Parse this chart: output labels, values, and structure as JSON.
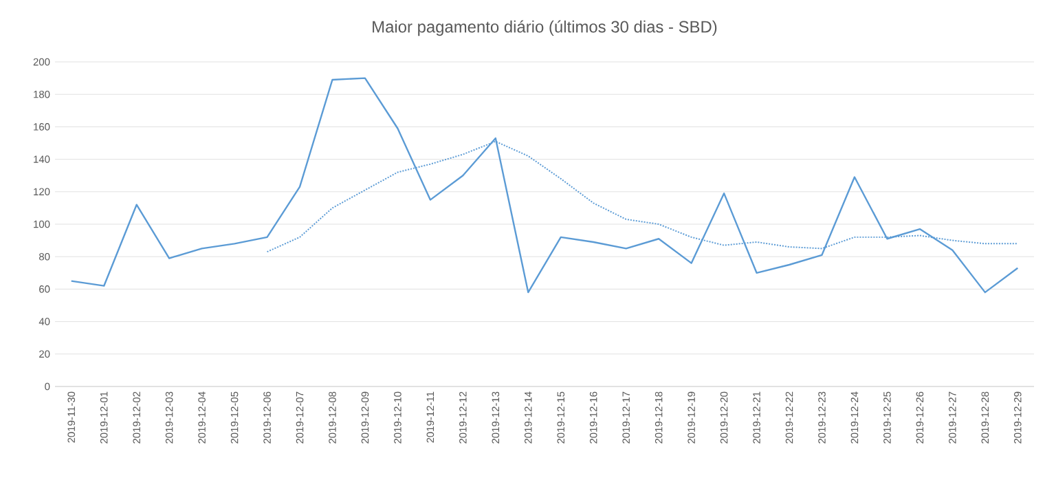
{
  "chart_data": {
    "type": "line",
    "title": "Maior pagamento diário (últimos 30 dias  - SBD)",
    "categories": [
      "2019-11-30",
      "2019-12-01",
      "2019-12-02",
      "2019-12-03",
      "2019-12-04",
      "2019-12-05",
      "2019-12-06",
      "2019-12-07",
      "2019-12-08",
      "2019-12-09",
      "2019-12-10",
      "2019-12-11",
      "2019-12-12",
      "2019-12-13",
      "2019-12-14",
      "2019-12-15",
      "2019-12-16",
      "2019-12-17",
      "2019-12-18",
      "2019-12-19",
      "2019-12-20",
      "2019-12-21",
      "2019-12-22",
      "2019-12-23",
      "2019-12-24",
      "2019-12-25",
      "2019-12-26",
      "2019-12-27",
      "2019-12-28",
      "2019-12-29"
    ],
    "series": [
      {
        "color": "#5b9bd5",
        "line_style": "solid",
        "values": [
          65,
          62,
          112,
          79,
          85,
          88,
          92,
          123,
          189,
          190,
          159,
          115,
          130,
          153,
          58,
          92,
          89,
          85,
          91,
          76,
          119,
          70,
          75,
          81,
          129,
          91,
          97,
          84,
          58,
          73
        ]
      },
      {
        "color": "#5b9bd5",
        "line_style": "dotted",
        "values": [
          null,
          null,
          null,
          null,
          null,
          null,
          83,
          92,
          110,
          121,
          132,
          137,
          143,
          151,
          142,
          128,
          113,
          103,
          100,
          92,
          87,
          89,
          86,
          85,
          92,
          92,
          93,
          90,
          88,
          88
        ]
      }
    ],
    "ylim": [
      0,
      200
    ],
    "yticks": [
      0,
      20,
      40,
      60,
      80,
      100,
      120,
      140,
      160,
      180,
      200
    ],
    "grid": "y",
    "marker": "none",
    "legend": false
  }
}
